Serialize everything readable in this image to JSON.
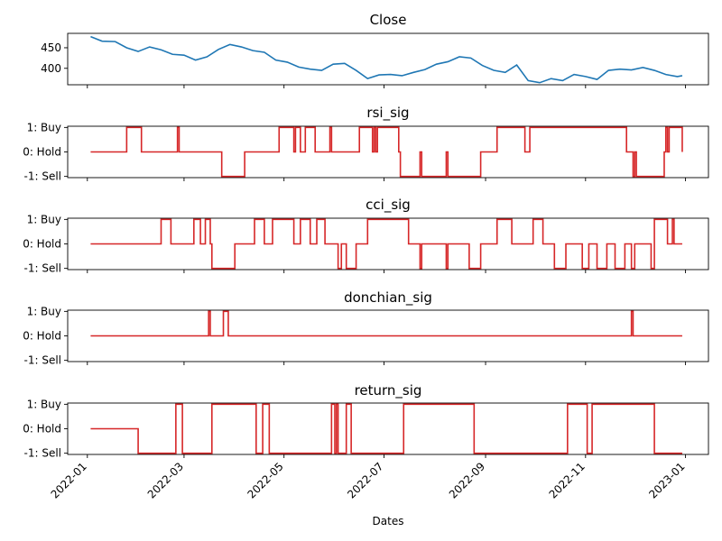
{
  "chart_data": [
    {
      "type": "line",
      "title": "Close",
      "y_ticks": [
        400,
        450
      ],
      "ylim": [
        360,
        485
      ],
      "color": "#1f77b4",
      "x_range": [
        "2021-12-20",
        "2023-01-15"
      ],
      "x": [
        "2022-01-03",
        "2022-01-10",
        "2022-01-18",
        "2022-01-25",
        "2022-02-01",
        "2022-02-08",
        "2022-02-15",
        "2022-02-22",
        "2022-03-01",
        "2022-03-08",
        "2022-03-15",
        "2022-03-22",
        "2022-03-29",
        "2022-04-05",
        "2022-04-12",
        "2022-04-19",
        "2022-04-26",
        "2022-05-03",
        "2022-05-10",
        "2022-05-17",
        "2022-05-24",
        "2022-05-31",
        "2022-06-07",
        "2022-06-14",
        "2022-06-21",
        "2022-06-28",
        "2022-07-05",
        "2022-07-12",
        "2022-07-19",
        "2022-07-26",
        "2022-08-02",
        "2022-08-09",
        "2022-08-16",
        "2022-08-23",
        "2022-08-30",
        "2022-09-06",
        "2022-09-13",
        "2022-09-20",
        "2022-09-27",
        "2022-10-04",
        "2022-10-11",
        "2022-10-18",
        "2022-10-25",
        "2022-11-01",
        "2022-11-08",
        "2022-11-15",
        "2022-11-22",
        "2022-11-29",
        "2022-12-06",
        "2022-12-13",
        "2022-12-20",
        "2022-12-27",
        "2022-12-30"
      ],
      "values": [
        477,
        466,
        465,
        450,
        441,
        452,
        445,
        434,
        432,
        420,
        428,
        446,
        458,
        452,
        443,
        439,
        420,
        415,
        403,
        398,
        395,
        410,
        412,
        395,
        375,
        384,
        385,
        382,
        390,
        397,
        410,
        416,
        428,
        425,
        407,
        395,
        390,
        408,
        370,
        365,
        375,
        370,
        385,
        380,
        373,
        395,
        398,
        396,
        402,
        395,
        385,
        380,
        382
      ]
    },
    {
      "type": "line",
      "title": "rsi_sig",
      "y_ticks": [
        -1,
        0,
        1
      ],
      "y_tick_labels": [
        "-1: Sell",
        "0: Hold",
        "1: Buy"
      ],
      "ylim": [
        -1.05,
        1.05
      ],
      "color": "#d62728",
      "x_range": [
        "2021-12-20",
        "2023-01-15"
      ],
      "x": [
        "2022-01-03",
        "2022-01-25",
        "2022-02-03",
        "2022-02-25",
        "2022-02-26",
        "2022-03-24",
        "2022-04-07",
        "2022-04-28",
        "2022-05-07",
        "2022-05-08",
        "2022-05-11",
        "2022-05-14",
        "2022-05-20",
        "2022-05-29",
        "2022-05-30",
        "2022-06-16",
        "2022-06-24",
        "2022-06-25",
        "2022-06-26",
        "2022-06-27",
        "2022-07-10",
        "2022-07-11",
        "2022-07-23",
        "2022-07-24",
        "2022-07-26",
        "2022-08-08",
        "2022-08-09",
        "2022-08-16",
        "2022-08-29",
        "2022-09-08",
        "2022-09-25",
        "2022-09-28",
        "2022-11-26",
        "2022-11-30",
        "2022-12-01",
        "2022-12-02",
        "2022-12-19",
        "2022-12-20",
        "2022-12-21",
        "2022-12-22",
        "2022-12-30"
      ],
      "values": [
        0,
        1,
        0,
        1,
        0,
        -1,
        0,
        1,
        0,
        1,
        0,
        1,
        0,
        1,
        0,
        1,
        0,
        1,
        0,
        1,
        0,
        -1,
        0,
        -1,
        -1,
        0,
        -1,
        -1,
        0,
        1,
        0,
        1,
        0,
        -1,
        0,
        -1,
        0,
        1,
        0,
        1,
        0
      ]
    },
    {
      "type": "line",
      "title": "cci_sig",
      "y_ticks": [
        -1,
        0,
        1
      ],
      "y_tick_labels": [
        "-1: Sell",
        "0: Hold",
        "1: Buy"
      ],
      "ylim": [
        -1.05,
        1.05
      ],
      "color": "#d62728",
      "x_range": [
        "2021-12-20",
        "2023-01-15"
      ],
      "x": [
        "2022-01-03",
        "2022-02-15",
        "2022-02-21",
        "2022-03-07",
        "2022-03-11",
        "2022-03-14",
        "2022-03-17",
        "2022-03-18",
        "2022-04-01",
        "2022-04-13",
        "2022-04-19",
        "2022-04-24",
        "2022-05-07",
        "2022-05-11",
        "2022-05-17",
        "2022-05-21",
        "2022-05-26",
        "2022-06-03",
        "2022-06-05",
        "2022-06-08",
        "2022-06-14",
        "2022-06-21",
        "2022-07-16",
        "2022-07-23",
        "2022-07-24",
        "2022-08-08",
        "2022-08-09",
        "2022-08-22",
        "2022-08-29",
        "2022-09-08",
        "2022-09-17",
        "2022-09-30",
        "2022-10-06",
        "2022-10-13",
        "2022-10-20",
        "2022-10-30",
        "2022-11-03",
        "2022-11-08",
        "2022-11-14",
        "2022-11-19",
        "2022-11-25",
        "2022-11-29",
        "2022-12-01",
        "2022-12-11",
        "2022-12-13",
        "2022-12-21",
        "2022-12-24",
        "2022-12-25",
        "2022-12-30"
      ],
      "values": [
        0,
        1,
        0,
        1,
        0,
        1,
        0,
        -1,
        0,
        1,
        0,
        1,
        0,
        1,
        0,
        1,
        0,
        -1,
        0,
        -1,
        0,
        1,
        0,
        -1,
        0,
        -1,
        0,
        -1,
        0,
        1,
        0,
        1,
        0,
        -1,
        0,
        -1,
        0,
        -1,
        0,
        -1,
        0,
        -1,
        0,
        -1,
        1,
        0,
        1,
        0,
        0
      ]
    },
    {
      "type": "line",
      "title": "donchian_sig",
      "y_ticks": [
        -1,
        0,
        1
      ],
      "y_tick_labels": [
        "-1: Sell",
        "0: Hold",
        "1: Buy"
      ],
      "ylim": [
        -1.05,
        1.05
      ],
      "color": "#d62728",
      "x_range": [
        "2021-12-20",
        "2023-01-15"
      ],
      "x": [
        "2022-01-03",
        "2022-03-16",
        "2022-03-17",
        "2022-03-25",
        "2022-03-28",
        "2022-11-29",
        "2022-11-30",
        "2022-12-30"
      ],
      "values": [
        0,
        1,
        0,
        1,
        0,
        1,
        0,
        0
      ]
    },
    {
      "type": "line",
      "title": "return_sig",
      "xlabel": "Dates",
      "y_ticks": [
        -1,
        0,
        1
      ],
      "y_tick_labels": [
        "-1: Sell",
        "0: Hold",
        "1: Buy"
      ],
      "ylim": [
        -1.05,
        1.05
      ],
      "color": "#d62728",
      "x_range": [
        "2021-12-20",
        "2023-01-15"
      ],
      "x_tick_labels": [
        "2022-01",
        "2022-03",
        "2022-05",
        "2022-07",
        "2022-09",
        "2022-11",
        "2023-01"
      ],
      "x_ticks": [
        "2022-01-01",
        "2022-03-01",
        "2022-05-01",
        "2022-07-01",
        "2022-09-01",
        "2022-11-01",
        "2023-01-01"
      ],
      "x": [
        "2022-01-03",
        "2022-02-01",
        "2022-02-24",
        "2022-02-28",
        "2022-03-18",
        "2022-04-14",
        "2022-04-18",
        "2022-04-22",
        "2022-05-30",
        "2022-06-01",
        "2022-06-02",
        "2022-06-03",
        "2022-06-04",
        "2022-06-08",
        "2022-06-11",
        "2022-07-13",
        "2022-08-25",
        "2022-10-21",
        "2022-11-02",
        "2022-11-05",
        "2022-12-13",
        "2022-12-30"
      ],
      "values": [
        0,
        -1,
        1,
        -1,
        1,
        -1,
        1,
        -1,
        1,
        -1,
        1,
        -1,
        -1,
        1,
        -1,
        1,
        -1,
        1,
        -1,
        1,
        -1,
        -1
      ]
    }
  ]
}
